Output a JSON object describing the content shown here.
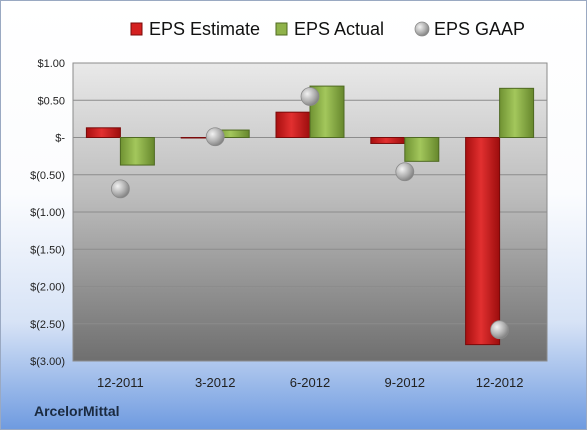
{
  "company": "ArcelorMittal",
  "chart_data": {
    "type": "bar",
    "categories": [
      "12-2011",
      "3-2012",
      "6-2012",
      "9-2012",
      "12-2012"
    ],
    "series": [
      {
        "name": "EPS Estimate",
        "kind": "bar",
        "color": "#d42020",
        "values": [
          0.13,
          0.0,
          0.34,
          -0.08,
          -2.78
        ]
      },
      {
        "name": "EPS Actual",
        "kind": "bar",
        "color": "#8fb24a",
        "values": [
          -0.37,
          0.1,
          0.69,
          -0.32,
          0.66
        ]
      },
      {
        "name": "EPS GAAP",
        "kind": "point",
        "color": "#a8a8a8",
        "values": [
          -0.69,
          0.01,
          0.55,
          -0.46,
          -2.58
        ]
      }
    ],
    "ylim": [
      -3.0,
      1.0
    ],
    "yticks": [
      {
        "value": 1.0,
        "label": "$1.00"
      },
      {
        "value": 0.5,
        "label": "$0.50"
      },
      {
        "value": 0.0,
        "label": "$-"
      },
      {
        "value": -0.5,
        "label": "$(0.50)"
      },
      {
        "value": -1.0,
        "label": "$(1.00)"
      },
      {
        "value": -1.5,
        "label": "$(1.50)"
      },
      {
        "value": -2.0,
        "label": "$(2.00)"
      },
      {
        "value": -2.5,
        "label": "$(2.50)"
      },
      {
        "value": -3.0,
        "label": "$(3.00)"
      }
    ],
    "grid": true,
    "legend_position": "top"
  }
}
